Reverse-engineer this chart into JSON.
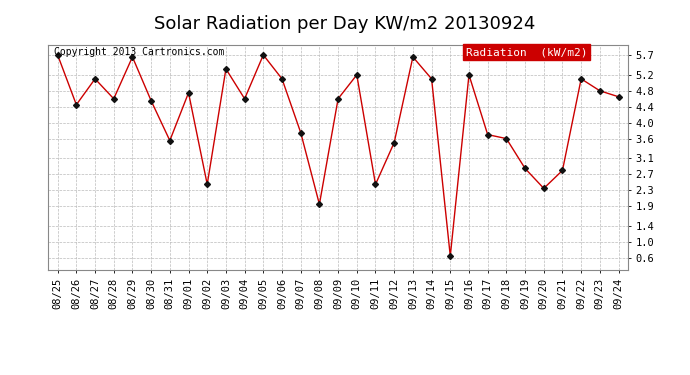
{
  "title": "Solar Radiation per Day KW/m2 20130924",
  "copyright": "Copyright 2013 Cartronics.com",
  "legend_label": "Radiation  (kW/m2)",
  "dates": [
    "08/25",
    "08/26",
    "08/27",
    "08/28",
    "08/29",
    "08/30",
    "08/31",
    "09/01",
    "09/02",
    "09/03",
    "09/04",
    "09/05",
    "09/06",
    "09/07",
    "09/08",
    "09/09",
    "09/10",
    "09/11",
    "09/12",
    "09/13",
    "09/14",
    "09/15",
    "09/16",
    "09/17",
    "09/18",
    "09/19",
    "09/20",
    "09/21",
    "09/22",
    "09/23",
    "09/24"
  ],
  "values": [
    5.7,
    4.45,
    5.1,
    4.6,
    5.65,
    4.55,
    3.55,
    4.75,
    2.45,
    5.35,
    4.6,
    5.7,
    5.1,
    3.75,
    1.95,
    4.6,
    5.2,
    2.45,
    3.5,
    5.65,
    5.1,
    0.65,
    5.2,
    3.7,
    3.6,
    2.85,
    2.35,
    2.8,
    5.1,
    4.8,
    4.65
  ],
  "line_color": "#cc0000",
  "marker_color": "#111111",
  "legend_bg": "#cc0000",
  "legend_text_color": "#ffffff",
  "background_color": "#ffffff",
  "grid_color": "#bbbbbb",
  "yticks": [
    0.6,
    1.0,
    1.4,
    1.9,
    2.3,
    2.7,
    3.1,
    3.6,
    4.0,
    4.4,
    4.8,
    5.2,
    5.7
  ],
  "ylim": [
    0.3,
    5.95
  ],
  "title_fontsize": 13,
  "copyright_fontsize": 7,
  "legend_fontsize": 8,
  "tick_fontsize": 7.5
}
